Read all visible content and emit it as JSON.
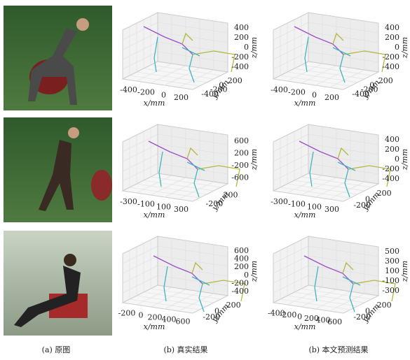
{
  "figure": {
    "captions": [
      "(a) 原图",
      "(b) 真实结果",
      "(b) 本文预测结果"
    ],
    "rows": [
      {
        "plots": [
          {
            "x_ticks": [
              -400,
              -200,
              0,
              200
            ],
            "y_ticks": [
              -400,
              -200,
              0,
              200
            ],
            "z_ticks": [
              400,
              200,
              0,
              -200,
              -400
            ],
            "x_label": "x/mm",
            "y_label": "y/mm",
            "z_label": "z/mm"
          },
          {
            "x_ticks": [
              -400,
              -200,
              0,
              200
            ],
            "y_ticks": [
              -400,
              -200,
              0,
              200
            ],
            "z_ticks": [
              400,
              200,
              0,
              -200,
              -400
            ],
            "x_label": "x/mm",
            "y_label": "y/mm",
            "z_label": "z/mm"
          }
        ]
      },
      {
        "plots": [
          {
            "x_ticks": [
              -300,
              -100,
              100,
              300
            ],
            "y_ticks": [
              -200,
              200
            ],
            "z_ticks": [
              600,
              200,
              -200,
              -600
            ],
            "x_label": "x/mm",
            "y_label": "y/mm",
            "z_label": "z/mm"
          },
          {
            "x_ticks": [
              -300,
              -100,
              100,
              300
            ],
            "y_ticks": [
              -200,
              0,
              200
            ],
            "z_ticks": [
              400,
              200,
              0,
              -200,
              -400
            ],
            "x_label": "x/mm",
            "y_label": "y/mm",
            "z_label": "z/mm"
          }
        ]
      },
      {
        "plots": [
          {
            "x_ticks": [
              -200,
              0,
              200,
              400,
              600
            ],
            "y_ticks": [
              -200,
              0,
              200
            ],
            "z_ticks": [
              600,
              400,
              200,
              0,
              -200,
              -400
            ],
            "x_label": "x/mm",
            "y_label": "y/mm",
            "z_label": "z/mm"
          },
          {
            "x_ticks": [
              -400,
              -200,
              0,
              200,
              400,
              600
            ],
            "y_ticks": [
              -200,
              0,
              200
            ],
            "z_ticks": [
              500,
              300,
              100,
              -100,
              -300
            ],
            "x_label": "x/mm",
            "y_label": "y/mm",
            "z_label": "z/mm"
          }
        ]
      }
    ]
  }
}
